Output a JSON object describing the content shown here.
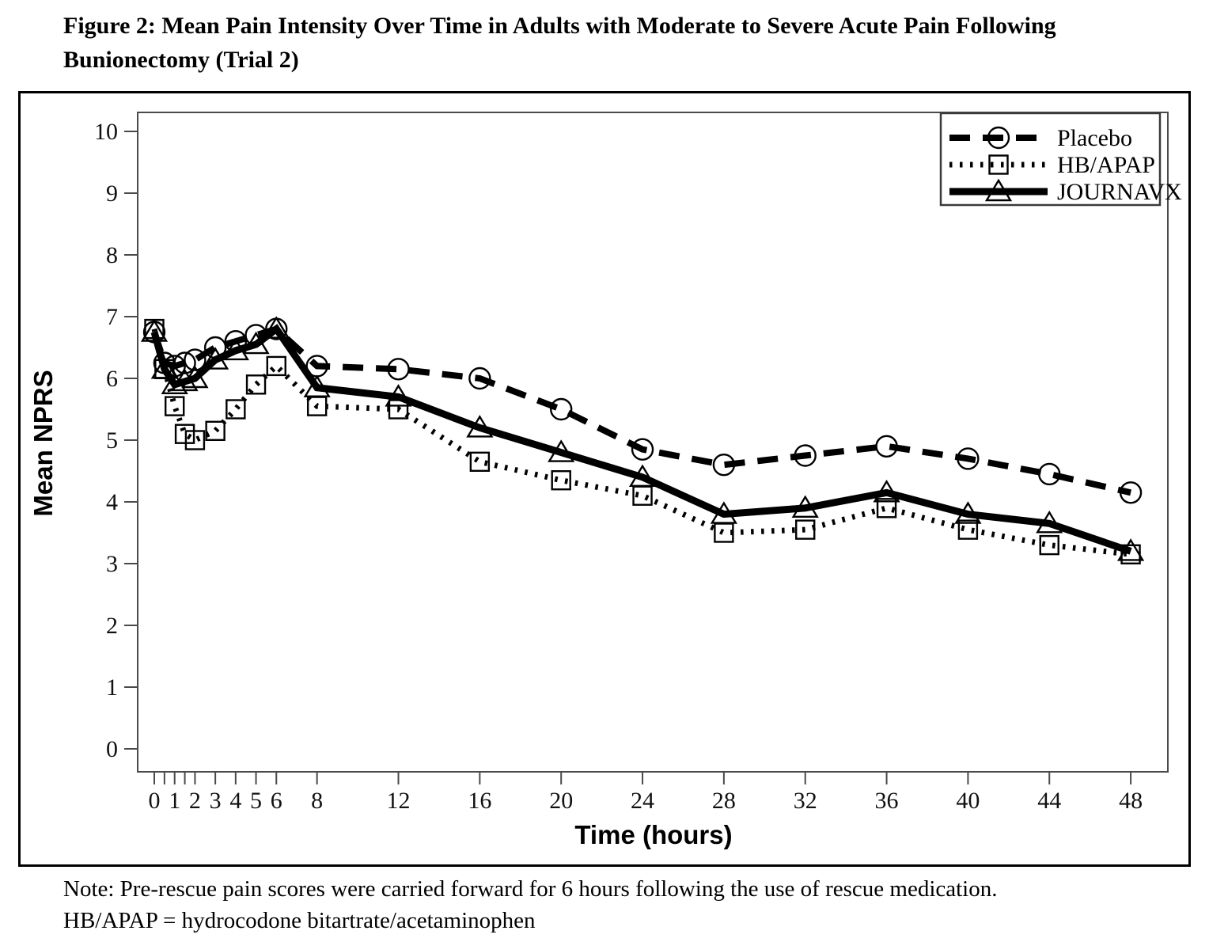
{
  "header": {
    "title_line1": "Figure 2: Mean Pain Intensity Over Time in Adults with Moderate to Severe Acute Pain Following",
    "title_line2": "Bunionectomy (Trial 2)"
  },
  "footer": {
    "note_line1": "Note: Pre-rescue pain scores were carried forward for 6 hours following the use of rescue medication.",
    "note_line2": "HB/APAP = hydrocodone bitartrate/acetaminophen"
  },
  "chart_data": {
    "type": "line",
    "title": "",
    "xlabel": "Time (hours)",
    "ylabel": "Mean NPRS",
    "xlim": [
      0,
      48
    ],
    "ylim": [
      0,
      10
    ],
    "grid": false,
    "frame_color": "#4a4a4a",
    "line_color": "#000000",
    "y_ticks": [
      0,
      1,
      2,
      3,
      4,
      5,
      6,
      7,
      8,
      9,
      10
    ],
    "x_tick_marks": [
      0,
      0.5,
      1,
      1.5,
      2,
      3,
      4,
      5,
      6,
      8,
      12,
      16,
      20,
      24,
      28,
      32,
      36,
      40,
      44,
      48
    ],
    "x_tick_labels": [
      0,
      1,
      2,
      3,
      4,
      5,
      6,
      8,
      12,
      16,
      20,
      24,
      28,
      32,
      36,
      40,
      44,
      48
    ],
    "x": [
      0,
      0.5,
      1,
      1.5,
      2,
      3,
      4,
      5,
      6,
      8,
      12,
      16,
      20,
      24,
      28,
      32,
      36,
      40,
      44,
      48
    ],
    "series": [
      {
        "name": "Placebo",
        "key": "placebo",
        "line_style": "dashed",
        "marker": "circle",
        "values": [
          6.75,
          6.25,
          6.2,
          6.25,
          6.3,
          6.5,
          6.6,
          6.7,
          6.8,
          6.2,
          6.15,
          6.0,
          5.5,
          4.85,
          4.6,
          4.75,
          4.9,
          4.7,
          4.45,
          4.15
        ]
      },
      {
        "name": "HB/APAP",
        "key": "hb-apap",
        "line_style": "dotted",
        "marker": "square",
        "values": [
          6.8,
          6.15,
          5.55,
          5.1,
          5.0,
          5.15,
          5.5,
          5.9,
          6.2,
          5.55,
          5.5,
          4.65,
          4.35,
          4.1,
          3.5,
          3.55,
          3.9,
          3.55,
          3.3,
          3.15
        ]
      },
      {
        "name": "JOURNAVX",
        "key": "journavx",
        "line_style": "solid",
        "marker": "triangle",
        "values": [
          6.75,
          6.15,
          5.9,
          5.95,
          6.0,
          6.3,
          6.45,
          6.55,
          6.8,
          5.85,
          5.7,
          5.2,
          4.8,
          4.4,
          3.8,
          3.9,
          4.15,
          3.8,
          3.65,
          3.2
        ]
      }
    ],
    "legend": {
      "position": "top-right",
      "entries": [
        "Placebo",
        "HB/APAP",
        "JOURNAVX"
      ]
    }
  }
}
